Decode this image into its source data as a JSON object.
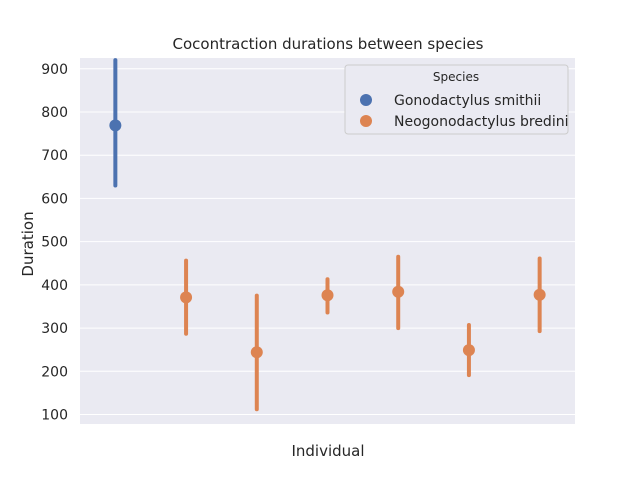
{
  "chart_data": {
    "type": "pointplot",
    "title": "Cocontraction durations between species",
    "xlabel": "Individual",
    "ylabel": "Duration",
    "ylim": [
      78,
      925
    ],
    "yticks": [
      100,
      200,
      300,
      400,
      500,
      600,
      700,
      800,
      900
    ],
    "grid": true,
    "legend": {
      "title": "Species",
      "placement": "top-right",
      "entries": [
        {
          "name": "Gonodactylus smithii",
          "color": "#4c72b0"
        },
        {
          "name": "Neogonodactylus bredini",
          "color": "#dd8452"
        }
      ]
    },
    "points": [
      {
        "index": 0,
        "species": "Gonodactylus smithii",
        "mean": 769,
        "ci_low": 630,
        "ci_high": 920
      },
      {
        "index": 1,
        "species": "Neogonodactylus bredini",
        "mean": 371,
        "ci_low": 287,
        "ci_high": 456
      },
      {
        "index": 2,
        "species": "Neogonodactylus bredini",
        "mean": 244,
        "ci_low": 112,
        "ci_high": 375
      },
      {
        "index": 3,
        "species": "Neogonodactylus bredini",
        "mean": 376,
        "ci_low": 336,
        "ci_high": 413
      },
      {
        "index": 4,
        "species": "Neogonodactylus bredini",
        "mean": 384,
        "ci_low": 300,
        "ci_high": 465
      },
      {
        "index": 5,
        "species": "Neogonodactylus bredini",
        "mean": 249,
        "ci_low": 191,
        "ci_high": 307
      },
      {
        "index": 6,
        "species": "Neogonodactylus bredini",
        "mean": 377,
        "ci_low": 293,
        "ci_high": 461
      }
    ],
    "colors": {
      "Gonodactylus smithii": "#4c72b0",
      "Neogonodactylus bredini": "#dd8452",
      "background": "#eaeaf2",
      "grid": "#ffffff"
    }
  }
}
